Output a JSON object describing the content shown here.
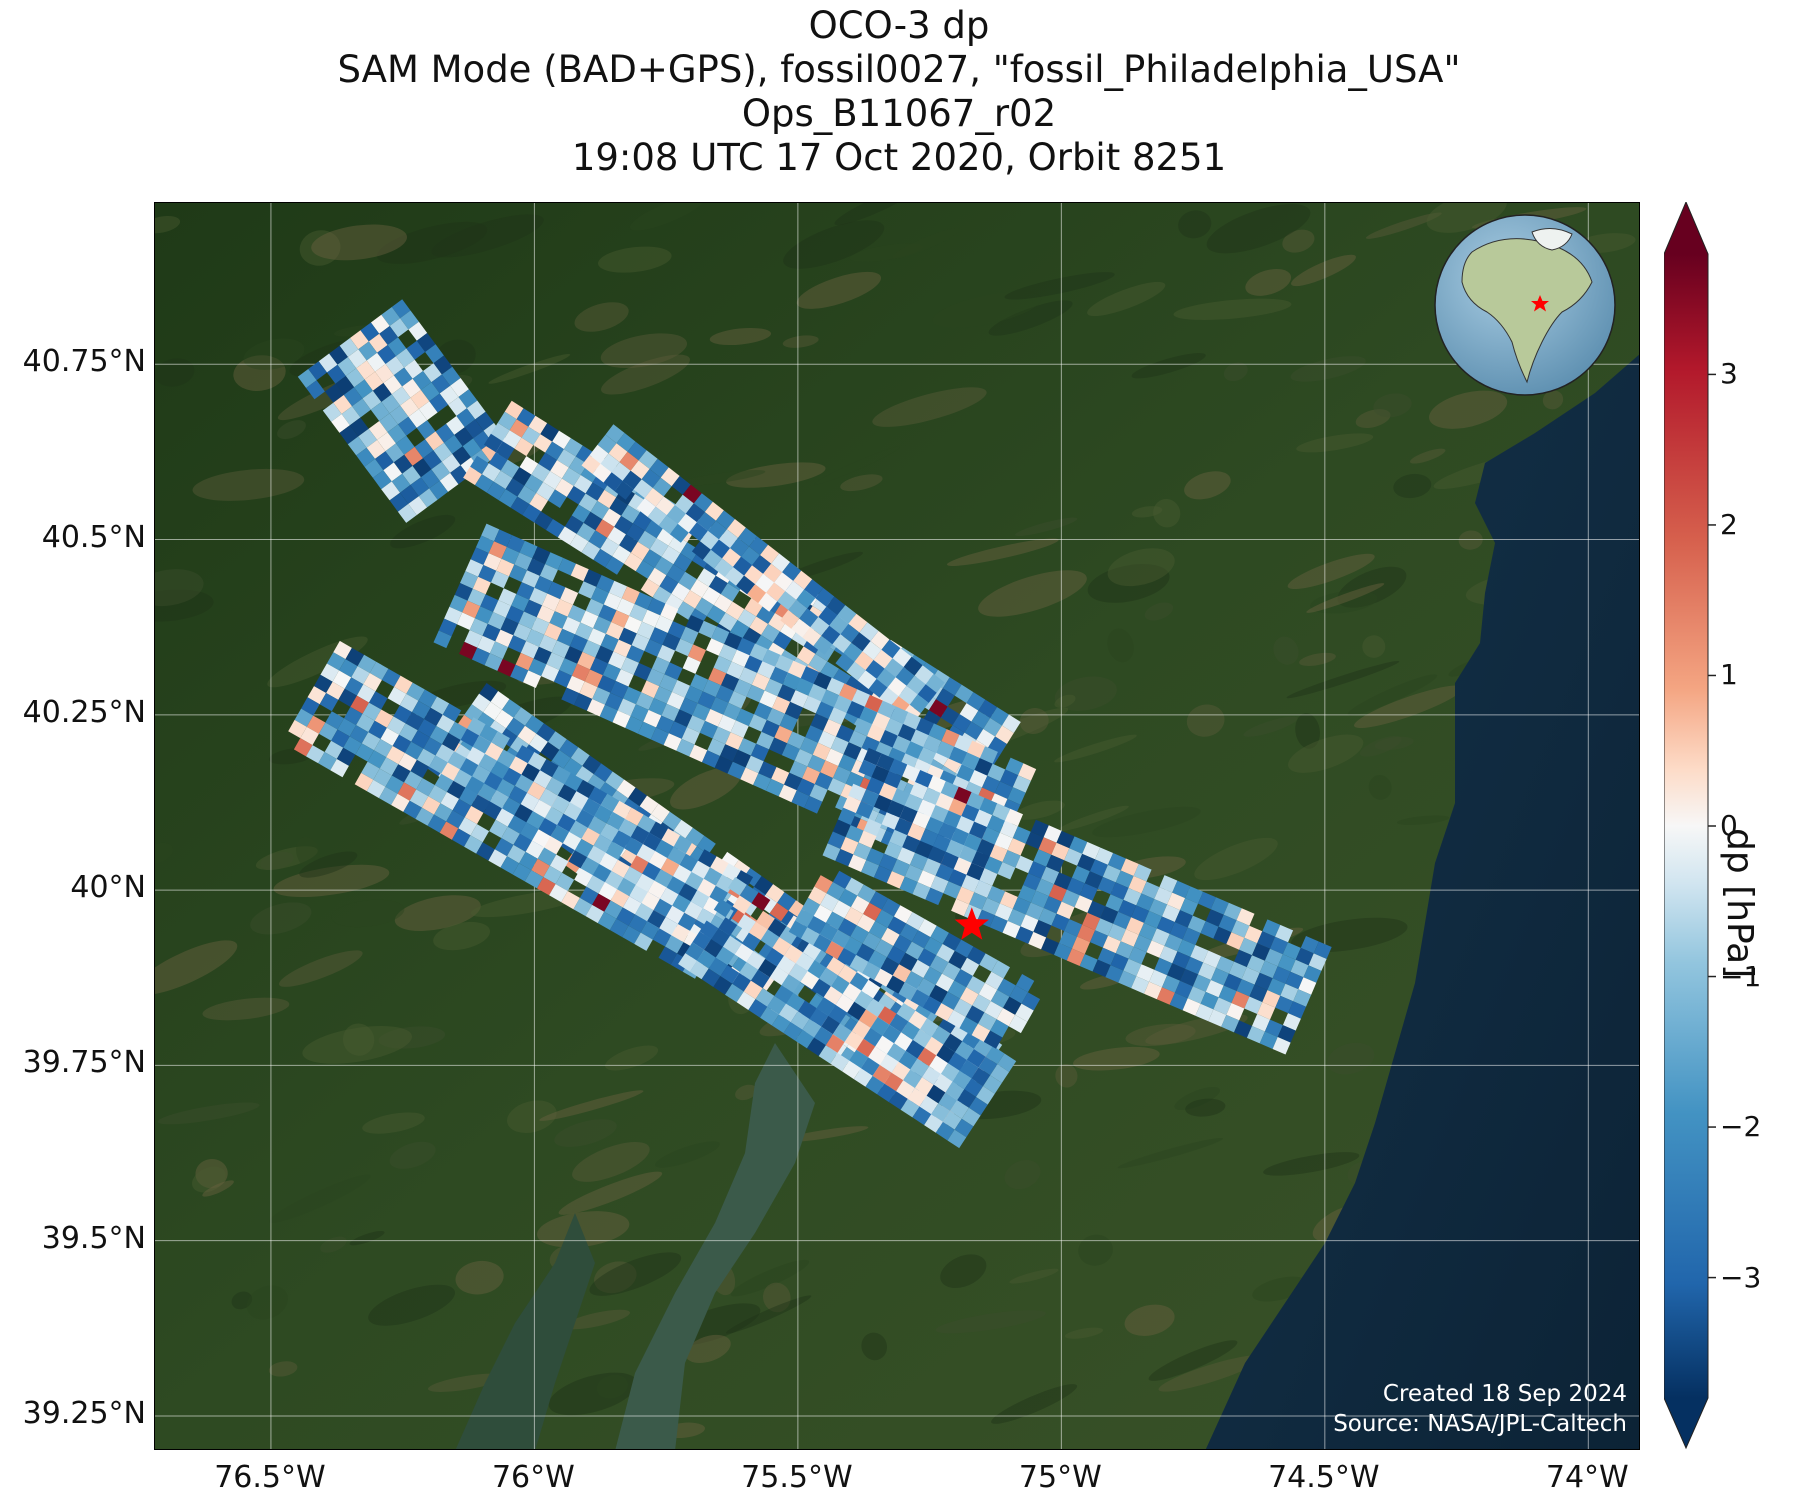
{
  "title": {
    "line1": "OCO-3 dp",
    "line2": "SAM Mode (BAD+GPS), fossil0027, \"fossil_Philadelphia_USA\"",
    "line3": "Ops_B11067_r02",
    "line4": "19:08 UTC 17 Oct 2020, Orbit 8251"
  },
  "map": {
    "lon_range": [
      -76.72,
      -73.9
    ],
    "lat_range": [
      39.2,
      40.98
    ],
    "y_ticks": [
      {
        "lat": 40.75,
        "label": "40.75°N"
      },
      {
        "lat": 40.5,
        "label": "40.5°N"
      },
      {
        "lat": 40.25,
        "label": "40.25°N"
      },
      {
        "lat": 40.0,
        "label": "40°N"
      },
      {
        "lat": 39.75,
        "label": "39.75°N"
      },
      {
        "lat": 39.5,
        "label": "39.5°N"
      },
      {
        "lat": 39.25,
        "label": "39.25°N"
      }
    ],
    "x_ticks": [
      {
        "lon": -76.5,
        "label": "76.5°W"
      },
      {
        "lon": -76.0,
        "label": "76°W"
      },
      {
        "lon": -75.5,
        "label": "75.5°W"
      },
      {
        "lon": -75.0,
        "label": "75°W"
      },
      {
        "lon": -74.5,
        "label": "74.5°W"
      },
      {
        "lon": -74.0,
        "label": "74°W"
      }
    ],
    "target": {
      "lon": -75.17,
      "lat": 39.95,
      "marker": "red-star-icon",
      "color": "#ff0000"
    },
    "background": "satellite-imagery",
    "grid": true
  },
  "credits": {
    "created": "Created 18 Sep 2024",
    "source": "Source: NASA/JPL-Caltech"
  },
  "colorbar": {
    "label": "dp [hPa]",
    "range": [
      -3.8,
      3.8
    ],
    "extend": "both",
    "colormap": "RdBu_r",
    "ticks": [
      {
        "value": 3,
        "label": "3"
      },
      {
        "value": 2,
        "label": "2"
      },
      {
        "value": 1,
        "label": "1"
      },
      {
        "value": 0,
        "label": "0"
      },
      {
        "value": -1,
        "label": "−1"
      },
      {
        "value": -2,
        "label": "−2"
      },
      {
        "value": -3,
        "label": "−3"
      }
    ]
  },
  "inset": {
    "icon": "globe-icon",
    "marker": "red-star-icon"
  }
}
